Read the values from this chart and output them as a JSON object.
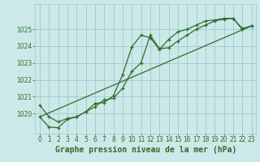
{
  "title": "",
  "xlabel": "Graphe pression niveau de la mer (hPa)",
  "bg_color": "#cce8e8",
  "plot_bg_color": "#cce8e8",
  "grid_color": "#99cccc",
  "line_color": "#2d6e2d",
  "xlim": [
    -0.5,
    23.5
  ],
  "ylim": [
    1018.8,
    1026.5
  ],
  "yticks": [
    1020,
    1021,
    1022,
    1023,
    1024,
    1025
  ],
  "xticks": [
    0,
    1,
    2,
    3,
    4,
    5,
    6,
    7,
    8,
    9,
    10,
    11,
    12,
    13,
    14,
    15,
    16,
    17,
    18,
    19,
    20,
    21,
    22,
    23
  ],
  "line1_x": [
    0,
    1,
    2,
    3,
    4,
    5,
    6,
    7,
    8,
    9,
    10,
    11,
    12,
    13,
    14,
    15,
    16,
    17,
    18,
    19,
    20,
    21,
    22,
    23
  ],
  "line1_y": [
    1020.5,
    1019.8,
    1019.5,
    1019.7,
    1019.8,
    1020.1,
    1020.4,
    1020.8,
    1020.9,
    1021.5,
    1022.5,
    1023.0,
    1024.65,
    1023.85,
    1023.9,
    1024.3,
    1024.65,
    1025.0,
    1025.25,
    1025.5,
    1025.6,
    1025.65,
    1025.05,
    1025.2
  ],
  "line2_x": [
    0,
    1,
    2,
    3,
    4,
    5,
    6,
    7,
    8,
    9,
    10,
    11,
    12,
    13,
    14,
    15,
    16,
    17,
    18,
    19,
    20,
    21,
    22,
    23
  ],
  "line2_y": [
    1019.8,
    1019.2,
    1019.15,
    1019.65,
    1019.8,
    1020.1,
    1020.6,
    1020.65,
    1021.05,
    1022.3,
    1023.95,
    1024.65,
    1024.5,
    1023.8,
    1024.4,
    1024.85,
    1025.0,
    1025.25,
    1025.5,
    1025.55,
    1025.65,
    1025.65,
    1025.0,
    1025.2
  ],
  "line3_x": [
    0,
    23
  ],
  "line3_y": [
    1019.8,
    1025.2
  ],
  "xlabel_fontsize": 7,
  "tick_fontsize": 5.5
}
